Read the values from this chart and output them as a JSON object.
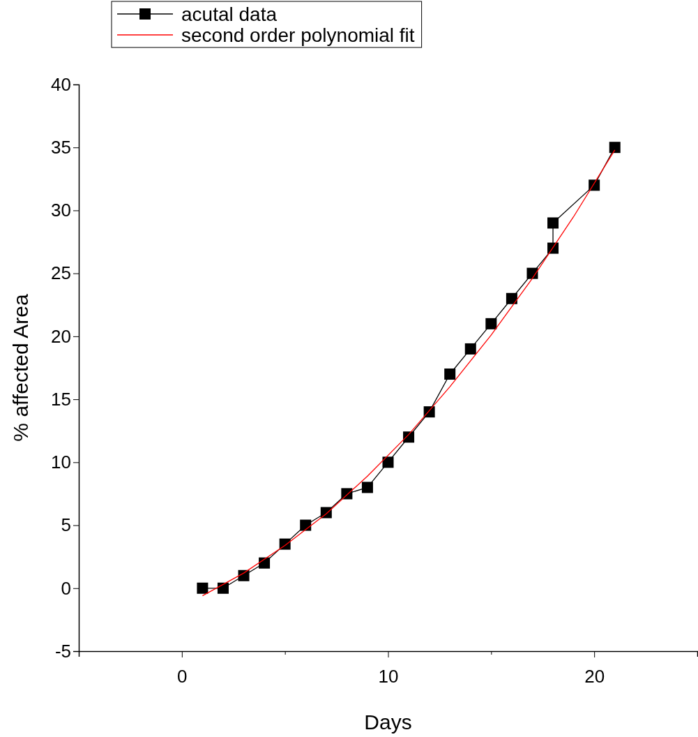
{
  "chart_data": {
    "type": "line",
    "xlabel": "Days",
    "ylabel": "% affected Area",
    "xlim": [
      -5,
      25
    ],
    "xticks": [
      {
        "value": -5,
        "label": null
      },
      0,
      {
        "value": 5,
        "label": null
      },
      10,
      {
        "value": 15,
        "label": null
      },
      20,
      {
        "value": 25,
        "label": null
      }
    ],
    "ylim": [
      -5,
      40
    ],
    "yticks": [
      -5,
      0,
      5,
      10,
      15,
      20,
      25,
      30,
      35,
      40
    ],
    "legend": "top left",
    "grid": false,
    "series": [
      {
        "name": "acutal data",
        "color": "#000000",
        "marker": "square",
        "x": [
          1,
          2,
          3,
          4,
          5,
          6,
          7,
          8,
          9,
          10,
          11,
          12,
          13,
          14,
          15,
          16,
          17,
          18,
          18,
          20,
          21
        ],
        "values": [
          0,
          0,
          1,
          2,
          3.5,
          5,
          6,
          7.5,
          8,
          10,
          12,
          14,
          17,
          19,
          21,
          23,
          25,
          27,
          29,
          32,
          35
        ]
      },
      {
        "name": "second order polynomial fit",
        "color": "#ff0000",
        "marker": "none",
        "x": [
          1,
          3,
          5,
          7,
          9,
          11,
          13,
          15,
          17,
          19,
          21
        ],
        "values": [
          -0.6,
          1.2,
          3.4,
          5.9,
          8.9,
          12.2,
          16,
          20.1,
          24.6,
          29.5,
          34.8
        ]
      }
    ]
  }
}
